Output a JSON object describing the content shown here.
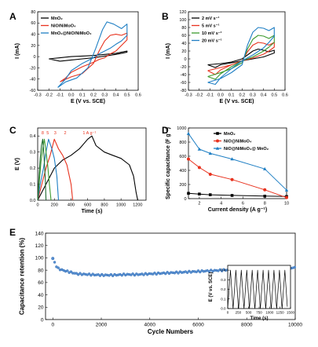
{
  "colors": {
    "black": "#000000",
    "red": "#e8321e",
    "blue": "#1f7fc4",
    "blue_dark": "#2566b0",
    "green": "#3c9a2e",
    "darkgreen": "#1f6b30",
    "navy": "#20305e"
  },
  "chart_data": [
    {
      "id": "A",
      "panel_label": "A",
      "type": "line",
      "xlabel": "E (V vs. SCE)",
      "ylabel": "I (mA)",
      "xlim": [
        -0.3,
        0.6
      ],
      "ylim": [
        -60,
        80
      ],
      "xticks": [
        "-0.3",
        "-0.2",
        "-0.1",
        "0.0",
        "0.1",
        "0.2",
        "0.3",
        "0.4",
        "0.5",
        "0.6"
      ],
      "yticks": [
        "-60",
        "-40",
        "-20",
        "0",
        "20",
        "40",
        "60",
        "80"
      ],
      "legend": "top-left",
      "series": [
        {
          "name": "MnO₂",
          "color": "#000000",
          "x": [
            -0.2,
            -0.1,
            0.0,
            0.1,
            0.2,
            0.3,
            0.4,
            0.45,
            0.5,
            0.5,
            0.45,
            0.4,
            0.3,
            0.2,
            0.1,
            0.0,
            -0.1,
            -0.2
          ],
          "y": [
            -4,
            -2,
            0,
            1,
            2,
            4,
            6,
            8,
            10,
            8,
            6,
            4,
            1,
            -2,
            -4,
            -6,
            -8,
            -4
          ]
        },
        {
          "name": "NiO/NiMoO₄",
          "color": "#e8321e",
          "x": [
            -0.1,
            0.0,
            0.1,
            0.2,
            0.25,
            0.3,
            0.35,
            0.4,
            0.45,
            0.5,
            0.5,
            0.45,
            0.4,
            0.35,
            0.3,
            0.25,
            0.2,
            0.1,
            0.0,
            -0.05,
            -0.1
          ],
          "y": [
            -45,
            -36,
            -30,
            -12,
            10,
            28,
            38,
            40,
            38,
            42,
            30,
            20,
            10,
            5,
            -2,
            -5,
            -10,
            -18,
            -28,
            -38,
            -45
          ]
        },
        {
          "name": "MnO₂@NiO/NiMoO₄",
          "color": "#1f7fc4",
          "x": [
            -0.12,
            -0.05,
            0.05,
            0.15,
            0.22,
            0.28,
            0.32,
            0.38,
            0.45,
            0.5,
            0.5,
            0.45,
            0.4,
            0.35,
            0.3,
            0.25,
            0.2,
            0.1,
            0.0,
            -0.05,
            -0.12
          ],
          "y": [
            -55,
            -45,
            -38,
            -20,
            15,
            48,
            62,
            58,
            50,
            58,
            38,
            28,
            22,
            15,
            10,
            5,
            -2,
            -12,
            -25,
            -40,
            -55
          ]
        }
      ]
    },
    {
      "id": "B",
      "panel_label": "B",
      "type": "line",
      "xlabel": "E (V vs. SCE)",
      "ylabel": "I (mA)",
      "xlim": [
        -0.3,
        0.6
      ],
      "ylim": [
        -80,
        120
      ],
      "xticks": [
        "-0.3",
        "-0.2",
        "-0.1",
        "0.0",
        "0.1",
        "0.2",
        "0.3",
        "0.4",
        "0.5",
        "0.6"
      ],
      "yticks": [
        "-80",
        "-60",
        "-40",
        "-20",
        "0",
        "20",
        "40",
        "60",
        "80",
        "100",
        "120"
      ],
      "legend": "top-left",
      "series": [
        {
          "name": "2 mV s⁻¹",
          "color": "#000000",
          "x": [
            -0.12,
            0.0,
            0.1,
            0.2,
            0.25,
            0.3,
            0.35,
            0.4,
            0.45,
            0.5,
            0.5,
            0.45,
            0.4,
            0.3,
            0.2,
            0.1,
            0.0,
            -0.05,
            -0.12
          ],
          "y": [
            -15,
            -12,
            -8,
            0,
            10,
            20,
            25,
            22,
            18,
            22,
            15,
            10,
            5,
            0,
            -5,
            -10,
            -15,
            -22,
            -15
          ]
        },
        {
          "name": "5 mV s⁻¹",
          "color": "#e8321e",
          "x": [
            -0.12,
            0.0,
            0.1,
            0.2,
            0.25,
            0.3,
            0.35,
            0.4,
            0.45,
            0.5,
            0.5,
            0.45,
            0.4,
            0.3,
            0.2,
            0.1,
            0.0,
            -0.05,
            -0.12
          ],
          "y": [
            -30,
            -22,
            -15,
            -5,
            18,
            35,
            42,
            40,
            35,
            42,
            30,
            20,
            12,
            2,
            -5,
            -15,
            -28,
            -40,
            -30
          ]
        },
        {
          "name": "10 mV s⁻¹",
          "color": "#3c9a2e",
          "x": [
            -0.12,
            0.0,
            0.1,
            0.2,
            0.25,
            0.3,
            0.35,
            0.4,
            0.45,
            0.5,
            0.5,
            0.45,
            0.4,
            0.3,
            0.2,
            0.1,
            0.0,
            -0.05,
            -0.12
          ],
          "y": [
            -45,
            -35,
            -25,
            -10,
            25,
            50,
            60,
            58,
            52,
            60,
            42,
            30,
            20,
            5,
            -5,
            -20,
            -38,
            -52,
            -45
          ]
        },
        {
          "name": "20 mV s⁻¹",
          "color": "#1f7fc4",
          "x": [
            -0.12,
            0.0,
            0.1,
            0.2,
            0.25,
            0.3,
            0.35,
            0.4,
            0.45,
            0.5,
            0.5,
            0.45,
            0.4,
            0.3,
            0.2,
            0.1,
            0.0,
            -0.05,
            -0.12
          ],
          "y": [
            -60,
            -50,
            -35,
            -15,
            35,
            68,
            80,
            78,
            72,
            80,
            58,
            42,
            28,
            10,
            -5,
            -25,
            -48,
            -65,
            -60
          ]
        }
      ]
    },
    {
      "id": "C",
      "panel_label": "C",
      "type": "line",
      "xlabel": "Time (s)",
      "ylabel": "E (V)",
      "xlim": [
        0,
        1300
      ],
      "ylim": [
        0,
        0.45
      ],
      "xticks": [
        "0",
        "200",
        "400",
        "600",
        "800",
        "1000",
        "1200"
      ],
      "yticks": [
        "0.0",
        "0.1",
        "0.2",
        "0.3",
        "0.4"
      ],
      "annotations": [
        "8",
        "5",
        "3",
        "2",
        "1 A g⁻¹"
      ],
      "series": [
        {
          "name": "1 A g⁻¹",
          "color": "#000000",
          "x": [
            0,
            100,
            200,
            300,
            400,
            500,
            600,
            650,
            700,
            800,
            900,
            1000,
            1100,
            1150,
            1180,
            1200
          ],
          "y": [
            0,
            0.1,
            0.2,
            0.25,
            0.28,
            0.32,
            0.38,
            0.4,
            0.34,
            0.3,
            0.28,
            0.26,
            0.22,
            0.15,
            0.05,
            0
          ]
        },
        {
          "name": "2 A g⁻¹",
          "color": "#e8321e",
          "x": [
            0,
            50,
            100,
            150,
            200,
            250,
            300,
            350,
            400,
            420
          ],
          "y": [
            0,
            0.1,
            0.2,
            0.28,
            0.38,
            0.32,
            0.28,
            0.22,
            0.1,
            0
          ]
        },
        {
          "name": "3 A g⁻¹",
          "color": "#1f7fc4",
          "x": [
            0,
            30,
            70,
            100,
            130,
            170,
            200,
            230,
            250
          ],
          "y": [
            0,
            0.1,
            0.2,
            0.3,
            0.38,
            0.32,
            0.26,
            0.15,
            0
          ]
        },
        {
          "name": "5 A g⁻¹",
          "color": "#3c9a2e",
          "x": [
            0,
            20,
            40,
            60,
            80,
            100,
            120,
            140,
            160
          ],
          "y": [
            0,
            0.12,
            0.24,
            0.32,
            0.38,
            0.3,
            0.22,
            0.1,
            0
          ]
        },
        {
          "name": "8 A g⁻¹",
          "color": "#1f6b30",
          "x": [
            0,
            15,
            30,
            45,
            60,
            75,
            90,
            100
          ],
          "y": [
            0,
            0.14,
            0.26,
            0.34,
            0.38,
            0.28,
            0.14,
            0
          ]
        }
      ]
    },
    {
      "id": "D",
      "panel_label": "D",
      "type": "line",
      "xlabel": "Current density (A g⁻¹)",
      "ylabel": "Specific capacitance (F g⁻¹)",
      "xlim": [
        1,
        10
      ],
      "ylim": [
        0,
        1000
      ],
      "xticks": [
        "2",
        "4",
        "6",
        "8",
        "10"
      ],
      "yticks": [
        "0",
        "200",
        "400",
        "600",
        "800",
        "1000"
      ],
      "legend": "top-right",
      "series": [
        {
          "name": "MnO₂",
          "color": "#000000",
          "marker": "square",
          "x": [
            1,
            2,
            3,
            5,
            8,
            10
          ],
          "y": [
            75,
            65,
            55,
            45,
            35,
            30
          ]
        },
        {
          "name": "NiO@NiMoO₄",
          "color": "#e8321e",
          "marker": "circle",
          "x": [
            1,
            2,
            3,
            5,
            8,
            10
          ],
          "y": [
            560,
            440,
            345,
            270,
            125,
            15
          ]
        },
        {
          "name": "NiO@NiMoO₄@ MnO₂",
          "color": "#1f7fc4",
          "marker": "triangle",
          "x": [
            1,
            2,
            3,
            5,
            8,
            10
          ],
          "y": [
            920,
            700,
            640,
            560,
            420,
            120
          ]
        }
      ]
    },
    {
      "id": "E",
      "panel_label": "E",
      "type": "scatter",
      "xlabel": "Cycle Numbers",
      "ylabel": "Capacitance retention (%)",
      "xlim": [
        -300,
        10000
      ],
      "ylim": [
        0,
        140
      ],
      "xticks": [
        "0",
        "2000",
        "4000",
        "6000",
        "8000",
        "10000"
      ],
      "yticks": [
        "0",
        "20",
        "40",
        "60",
        "80",
        "100",
        "120",
        "140"
      ],
      "series": [
        {
          "name": "retention",
          "color": "#2566b0",
          "x": [
            0,
            100,
            200,
            400,
            600,
            800,
            1000,
            1500,
            2000,
            2500,
            3000,
            3500,
            4000,
            4500,
            5000,
            5500,
            6000,
            6500,
            7000,
            7500,
            8000,
            8500,
            9000,
            9500,
            10000
          ],
          "y": [
            99,
            90,
            83,
            80,
            78,
            76,
            74,
            73,
            72,
            72,
            73,
            73,
            74,
            75,
            76,
            77,
            78,
            79,
            80,
            81,
            82,
            82,
            83,
            83,
            84
          ]
        }
      ],
      "inset": {
        "type": "line",
        "xlabel": "Time (s)",
        "ylabel": "E (V vs. SCE)",
        "xlim": [
          0,
          1500
        ],
        "ylim": [
          0,
          0.45
        ],
        "xticks": [
          "0",
          "250",
          "500",
          "750",
          "1000",
          "1250",
          "1500"
        ],
        "yticks": [
          "0.0",
          "0.1",
          "0.2",
          "0.3",
          "0.4"
        ],
        "cycles": 11,
        "vmax": 0.4,
        "period": 130
      }
    }
  ]
}
